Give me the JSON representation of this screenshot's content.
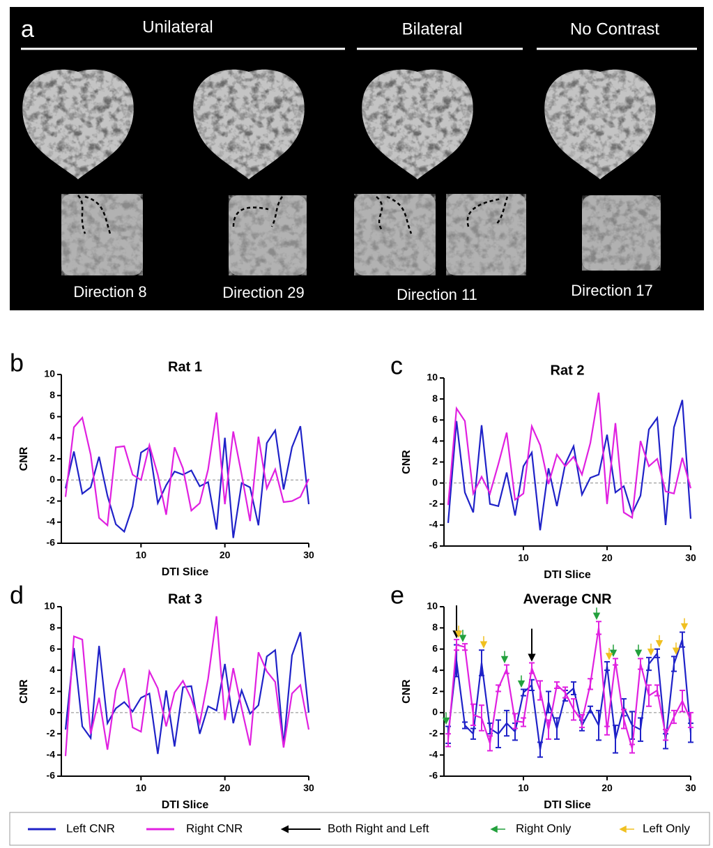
{
  "panel_a": {
    "label": "a",
    "groups": [
      "Unilateral",
      "Bilateral",
      "No Contrast"
    ],
    "directions": [
      "Direction 8",
      "Direction 29",
      "Direction 11",
      "Direction 17"
    ]
  },
  "chart_data": [
    {
      "type": "line",
      "label": "b",
      "title": "Rat 1",
      "x_label": "DTI Slice",
      "y_label": "CNR",
      "x": [
        1,
        2,
        3,
        4,
        5,
        6,
        7,
        8,
        9,
        10,
        11,
        12,
        13,
        14,
        15,
        16,
        17,
        18,
        19,
        20,
        21,
        22,
        23,
        24,
        25,
        26,
        27,
        28,
        29,
        30
      ],
      "series": [
        {
          "color": "#1f22c8",
          "values": [
            -0.8,
            2.7,
            -1.3,
            -0.7,
            2.2,
            -1.5,
            -4.2,
            -4.9,
            -2.5,
            2.6,
            3.1,
            -2.2,
            -0.5,
            0.8,
            0.5,
            0.9,
            -0.6,
            -0.2,
            -4.7,
            4.0,
            -5.5,
            -0.3,
            -0.7,
            -4.3,
            3.5,
            4.7,
            -0.9,
            3.1,
            5.1,
            -2.3
          ]
        },
        {
          "color": "#e020e0",
          "values": [
            -1.6,
            5.0,
            5.9,
            2.4,
            -3.6,
            -4.3,
            3.1,
            3.2,
            0.5,
            0.0,
            3.3,
            0.5,
            -3.3,
            3.1,
            1.1,
            -2.9,
            -2.2,
            1.0,
            6.4,
            -2.3,
            4.6,
            0.5,
            -3.9,
            4.1,
            -0.8,
            1.0,
            -2.1,
            -2.0,
            -1.6,
            0.1
          ]
        }
      ],
      "xlim": [
        0.5,
        30
      ],
      "xticks": [
        10,
        20,
        30
      ],
      "ylim": [
        -6,
        10
      ],
      "yticks": [
        -6,
        -4,
        -2,
        0,
        2,
        4,
        6,
        8,
        10
      ],
      "zero_line": true
    },
    {
      "type": "line",
      "label": "c",
      "title": "Rat 2",
      "x_label": "DTI Slice",
      "y_label": "CNR",
      "x": [
        1,
        2,
        3,
        4,
        5,
        6,
        7,
        8,
        9,
        10,
        11,
        12,
        13,
        14,
        15,
        16,
        17,
        18,
        19,
        20,
        21,
        22,
        23,
        24,
        25,
        26,
        27,
        28,
        29,
        30
      ],
      "series": [
        {
          "color": "#1f22c8",
          "values": [
            -3.8,
            5.9,
            -0.9,
            -2.8,
            5.5,
            -2.0,
            -2.2,
            1.0,
            -3.1,
            1.6,
            2.9,
            -4.5,
            1.4,
            -2.2,
            1.8,
            3.5,
            -1.1,
            0.5,
            0.8,
            4.6,
            -0.9,
            -0.3,
            -2.9,
            -1.2,
            5.1,
            6.2,
            -4.0,
            5.3,
            7.9,
            -3.4
          ]
        },
        {
          "color": "#e020e0",
          "values": [
            -2.1,
            7.1,
            5.9,
            -1.0,
            0.6,
            -1.0,
            1.8,
            4.8,
            -1.6,
            -1.0,
            5.4,
            3.6,
            -0.1,
            2.7,
            1.6,
            2.5,
            0.8,
            3.8,
            8.6,
            -2.0,
            5.7,
            -2.8,
            -3.3,
            4.0,
            1.6,
            2.3,
            -0.8,
            -1.0,
            2.4,
            -0.5
          ]
        }
      ],
      "xlim": [
        0.5,
        30
      ],
      "xticks": [
        10,
        20,
        30
      ],
      "ylim": [
        -6,
        10
      ],
      "yticks": [
        -6,
        -4,
        -2,
        0,
        2,
        4,
        6,
        8,
        10
      ],
      "zero_line": true
    },
    {
      "type": "line",
      "label": "d",
      "title": "Rat 3",
      "x_label": "DTI Slice",
      "y_label": "CNR",
      "x": [
        1,
        2,
        3,
        4,
        5,
        6,
        7,
        8,
        9,
        10,
        11,
        12,
        13,
        14,
        15,
        16,
        17,
        18,
        19,
        20,
        21,
        22,
        23,
        24,
        25,
        26,
        27,
        28,
        29,
        30
      ],
      "series": [
        {
          "color": "#1f22c8",
          "values": [
            -1.6,
            6.1,
            -1.3,
            -2.4,
            6.3,
            -1.0,
            0.4,
            1.0,
            0.1,
            1.4,
            1.8,
            -3.9,
            2.1,
            -3.2,
            2.4,
            2.5,
            -2.0,
            0.6,
            0.2,
            4.6,
            -1.0,
            2.1,
            -0.1,
            0.7,
            5.3,
            5.9,
            -3.1,
            5.4,
            7.6,
            0.0
          ]
        },
        {
          "color": "#e020e0",
          "values": [
            -4.1,
            7.2,
            6.9,
            -2.0,
            1.4,
            -3.5,
            2.1,
            4.2,
            -1.4,
            -1.8,
            3.9,
            2.3,
            -1.3,
            1.9,
            3.0,
            1.3,
            -1.0,
            3.2,
            9.1,
            -0.7,
            4.2,
            0.4,
            -3.1,
            5.7,
            3.9,
            2.9,
            -3.3,
            1.8,
            2.6,
            -1.6
          ]
        }
      ],
      "xlim": [
        0.5,
        30
      ],
      "xticks": [
        10,
        20,
        30
      ],
      "ylim": [
        -6,
        10
      ],
      "yticks": [
        -6,
        -4,
        -2,
        0,
        2,
        4,
        6,
        8,
        10
      ],
      "zero_line": true
    },
    {
      "type": "errorline",
      "label": "e",
      "title": "Average CNR",
      "x_label": "DTI Slice",
      "y_label": "CNR",
      "x": [
        1,
        2,
        3,
        4,
        5,
        6,
        7,
        8,
        9,
        10,
        11,
        12,
        13,
        14,
        15,
        16,
        17,
        18,
        19,
        20,
        21,
        22,
        23,
        24,
        25,
        26,
        27,
        28,
        29,
        30
      ],
      "series": [
        {
          "name": "Left CNR",
          "color": "#1f22c8",
          "values": [
            -2.1,
            4.9,
            -1.2,
            -2.0,
            4.7,
            -1.5,
            -2.0,
            -1.0,
            -1.8,
            1.9,
            2.6,
            -3.5,
            1.0,
            -1.5,
            1.6,
            2.3,
            -1.2,
            0.3,
            -1.2,
            4.4,
            -2.5,
            0.5,
            -1.2,
            -1.6,
            4.6,
            5.6,
            -2.7,
            4.6,
            6.9,
            -1.9
          ],
          "errors": [
            0.8,
            1.5,
            0.3,
            0.5,
            1.2,
            0.5,
            1.3,
            1.2,
            0.8,
            0.3,
            0.5,
            0.7,
            1.0,
            1.0,
            0.5,
            0.6,
            0.5,
            0.3,
            1.4,
            0.4,
            1.3,
            0.8,
            1.3,
            1.1,
            0.6,
            0.4,
            0.7,
            0.7,
            0.7,
            0.9
          ]
        },
        {
          "name": "Right CNR",
          "color": "#e020e0",
          "values": [
            -2.6,
            6.4,
            6.2,
            -0.2,
            -0.5,
            -2.9,
            2.3,
            4.1,
            -0.8,
            -0.9,
            4.2,
            2.1,
            -1.6,
            2.6,
            1.9,
            0.3,
            -0.8,
            2.7,
            8.0,
            -1.7,
            4.8,
            -0.6,
            -3.4,
            4.6,
            1.6,
            2.1,
            -2.1,
            -0.4,
            1.1,
            -0.7
          ],
          "errors": [
            0.6,
            0.5,
            0.3,
            1.0,
            1.2,
            0.7,
            0.3,
            0.4,
            0.7,
            0.4,
            0.5,
            0.9,
            0.9,
            0.3,
            0.5,
            1.0,
            0.6,
            0.5,
            0.6,
            0.4,
            0.3,
            0.9,
            0.4,
            0.5,
            1.0,
            0.5,
            0.5,
            0.6,
            1.0,
            0.7
          ]
        }
      ],
      "arrows": [
        {
          "name": "Both Right and Left",
          "color": "#000000",
          "x": [
            2,
            11
          ]
        },
        {
          "name": "Right Only",
          "color": "#22a03c",
          "x": [
            1,
            3,
            8,
            10,
            19,
            21,
            24
          ]
        },
        {
          "name": "Left Only",
          "color": "#f0c020",
          "x": [
            2,
            5,
            20,
            25,
            26,
            28,
            29
          ]
        }
      ],
      "xlim": [
        0.5,
        30
      ],
      "xticks": [
        10,
        20,
        30
      ],
      "ylim": [
        -6,
        10
      ],
      "yticks": [
        -6,
        -4,
        -2,
        0,
        2,
        4,
        6,
        8,
        10
      ],
      "zero_line": true
    }
  ]
}
